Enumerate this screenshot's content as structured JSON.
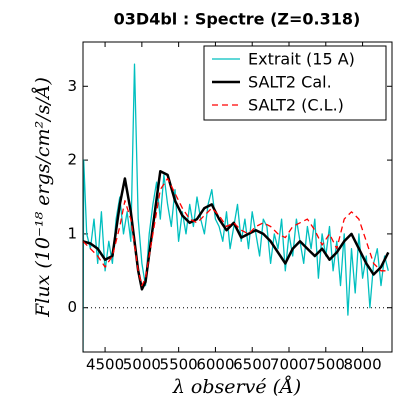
{
  "chart_data": {
    "type": "line",
    "title": "03D4bl : Spectre (Z=0.318)",
    "x_label": "λ observé (Å)",
    "y_label": "Flux (10⁻¹⁸ ergs/cm²/s/Å)",
    "xlim": [
      4200,
      8400
    ],
    "ylim": [
      -0.6,
      3.6
    ],
    "xticks": [
      4500,
      5000,
      5500,
      6000,
      6500,
      7000,
      7500,
      8000
    ],
    "yticks": [
      0,
      1,
      2,
      3
    ],
    "hline": 0,
    "legend": "upper right",
    "series": [
      {
        "name": "Extrait (15 A)",
        "color": "#00bfbf",
        "style": "solid",
        "width": 1.3,
        "x": [
          4200,
          4210,
          4250,
          4300,
          4350,
          4400,
          4450,
          4500,
          4550,
          4600,
          4650,
          4700,
          4750,
          4800,
          4850,
          4900,
          4950,
          5000,
          5050,
          5100,
          5150,
          5200,
          5250,
          5300,
          5350,
          5400,
          5450,
          5500,
          5550,
          5600,
          5650,
          5700,
          5750,
          5800,
          5850,
          5900,
          5950,
          6000,
          6050,
          6100,
          6150,
          6200,
          6250,
          6300,
          6350,
          6400,
          6450,
          6500,
          6550,
          6600,
          6650,
          6700,
          6750,
          6800,
          6850,
          6900,
          6950,
          7000,
          7050,
          7100,
          7150,
          7200,
          7250,
          7300,
          7350,
          7400,
          7450,
          7500,
          7550,
          7600,
          7650,
          7700,
          7750,
          7800,
          7850,
          7900,
          7950,
          8000,
          8050,
          8100,
          8150,
          8200,
          8250,
          8300,
          8350
        ],
        "values": [
          -0.6,
          2.0,
          1.0,
          0.8,
          1.2,
          0.6,
          1.3,
          0.5,
          0.9,
          0.6,
          1.2,
          1.5,
          1.0,
          1.3,
          0.9,
          3.3,
          1.2,
          0.6,
          0.3,
          1.0,
          1.4,
          1.7,
          1.2,
          1.8,
          1.4,
          1.1,
          1.6,
          0.9,
          1.3,
          1.0,
          1.4,
          1.1,
          1.5,
          1.2,
          1.0,
          1.4,
          1.6,
          1.2,
          1.1,
          0.9,
          1.3,
          0.8,
          1.1,
          1.4,
          0.9,
          1.2,
          0.8,
          1.3,
          1.0,
          0.7,
          1.2,
          1.1,
          0.6,
          1.0,
          0.8,
          1.2,
          0.5,
          1.0,
          0.7,
          1.2,
          0.9,
          0.6,
          1.1,
          0.8,
          1.2,
          0.4,
          1.0,
          0.7,
          1.1,
          0.5,
          0.9,
          0.3,
          1.0,
          -0.1,
          0.8,
          0.2,
          1.0,
          0.4,
          0.7,
          0.0,
          0.6,
          0.8,
          0.3,
          0.7,
          0.5
        ]
      },
      {
        "name": "SALT2 Cal.",
        "color": "#000000",
        "style": "solid",
        "width": 2.5,
        "x": [
          4200,
          4300,
          4400,
          4500,
          4600,
          4700,
          4770,
          4850,
          4950,
          5000,
          5050,
          5150,
          5250,
          5350,
          5450,
          5550,
          5650,
          5750,
          5850,
          5950,
          6050,
          6150,
          6250,
          6350,
          6450,
          6550,
          6650,
          6750,
          6850,
          6950,
          7050,
          7150,
          7250,
          7350,
          7450,
          7550,
          7650,
          7750,
          7850,
          7950,
          8050,
          8150,
          8250,
          8350
        ],
        "values": [
          0.9,
          0.87,
          0.8,
          0.65,
          0.7,
          1.4,
          1.75,
          1.3,
          0.5,
          0.25,
          0.35,
          1.1,
          1.85,
          1.8,
          1.45,
          1.25,
          1.15,
          1.2,
          1.35,
          1.4,
          1.2,
          1.05,
          1.15,
          0.95,
          1.0,
          1.05,
          1.0,
          0.9,
          0.75,
          0.6,
          0.8,
          0.9,
          0.8,
          0.7,
          0.8,
          0.65,
          0.75,
          0.9,
          1.0,
          0.8,
          0.6,
          0.45,
          0.55,
          0.75
        ]
      },
      {
        "name": "SALT2 (C.L.)",
        "color": "#ff0000",
        "style": "dashed",
        "width": 1.3,
        "x": [
          4200,
          4300,
          4400,
          4500,
          4600,
          4700,
          4770,
          4850,
          4950,
          5000,
          5050,
          5150,
          5250,
          5350,
          5450,
          5550,
          5650,
          5750,
          5850,
          5950,
          6050,
          6150,
          6250,
          6350,
          6450,
          6550,
          6650,
          6750,
          6850,
          6950,
          7050,
          7150,
          7250,
          7350,
          7450,
          7550,
          7650,
          7750,
          7850,
          7950,
          8050,
          8150,
          8250,
          8350
        ],
        "values": [
          0.9,
          0.8,
          0.7,
          0.55,
          0.7,
          1.1,
          1.45,
          1.2,
          0.5,
          0.3,
          0.4,
          1.0,
          1.6,
          1.75,
          1.55,
          1.35,
          1.2,
          1.15,
          1.25,
          1.35,
          1.25,
          1.1,
          1.15,
          1.05,
          1.0,
          1.1,
          1.15,
          1.1,
          1.0,
          0.95,
          1.1,
          1.15,
          1.2,
          1.05,
          0.85,
          1.0,
          0.8,
          1.2,
          1.3,
          1.2,
          0.9,
          0.6,
          0.5,
          0.5
        ]
      }
    ]
  }
}
